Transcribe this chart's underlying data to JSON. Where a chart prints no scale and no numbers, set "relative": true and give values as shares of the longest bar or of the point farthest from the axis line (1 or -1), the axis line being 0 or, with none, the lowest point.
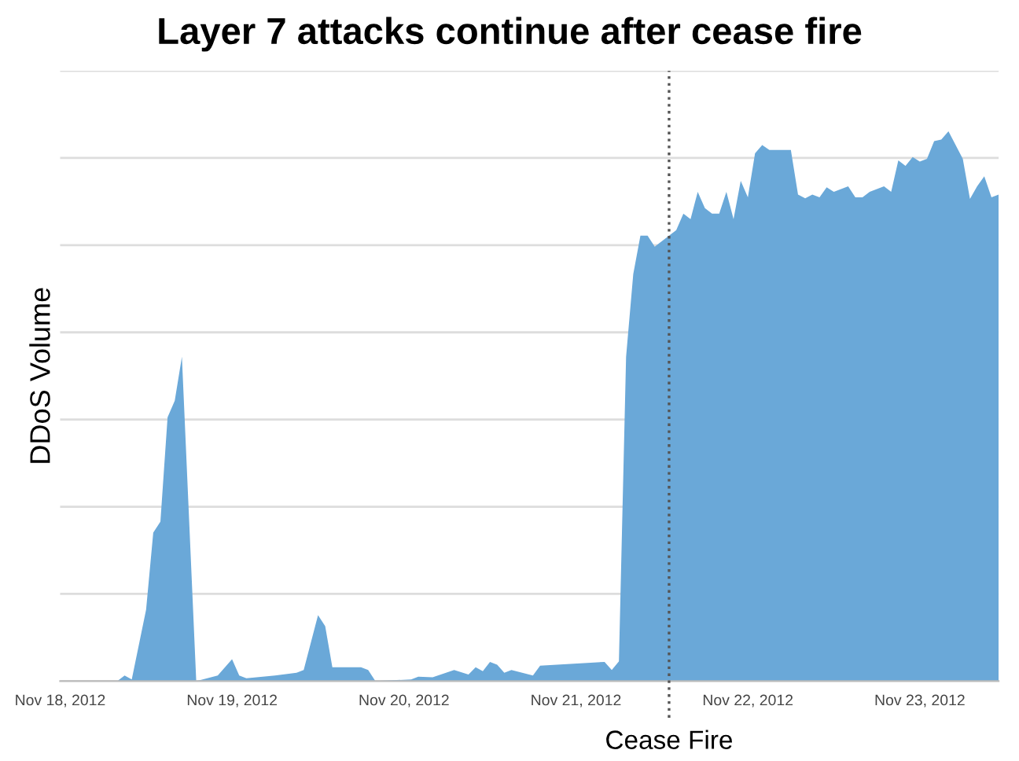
{
  "chart_data": {
    "type": "area",
    "title": "Layer 7 attacks continue after cease fire",
    "ylabel": "DDoS Volume",
    "relative": true,
    "grid": "y",
    "legend": false,
    "color": "#6aa8d8",
    "x": [
      "2012-11-18T00:00",
      "2012-11-18T08:00",
      "2012-11-18T09:00",
      "2012-11-18T10:00",
      "2012-11-18T12:00",
      "2012-11-18T13:00",
      "2012-11-18T14:00",
      "2012-11-18T15:00",
      "2012-11-18T16:00",
      "2012-11-18T17:00",
      "2012-11-18T19:00",
      "2012-11-18T22:00",
      "2012-11-19T00:00",
      "2012-11-19T01:00",
      "2012-11-19T02:00",
      "2012-11-19T06:00",
      "2012-11-19T09:00",
      "2012-11-19T10:00",
      "2012-11-19T12:00",
      "2012-11-19T13:00",
      "2012-11-19T14:00",
      "2012-11-19T18:00",
      "2012-11-19T19:00",
      "2012-11-19T20:00",
      "2012-11-20T01:00",
      "2012-11-20T02:00",
      "2012-11-20T04:00",
      "2012-11-20T07:00",
      "2012-11-20T09:00",
      "2012-11-20T10:00",
      "2012-11-20T11:00",
      "2012-11-20T12:00",
      "2012-11-20T13:00",
      "2012-11-20T14:00",
      "2012-11-20T15:00",
      "2012-11-20T18:00",
      "2012-11-20T19:00",
      "2012-11-21T04:00",
      "2012-11-21T05:00",
      "2012-11-21T06:00",
      "2012-11-21T07:00",
      "2012-11-21T08:00",
      "2012-11-21T09:00",
      "2012-11-21T10:00",
      "2012-11-21T11:00",
      "2012-11-21T12:00",
      "2012-11-21T14:00",
      "2012-11-21T15:00",
      "2012-11-21T16:00",
      "2012-11-21T17:00",
      "2012-11-21T18:00",
      "2012-11-21T19:00",
      "2012-11-21T20:00",
      "2012-11-21T21:00",
      "2012-11-21T22:00",
      "2012-11-21T23:00",
      "2012-11-22T00:00",
      "2012-11-22T01:00",
      "2012-11-22T02:00",
      "2012-11-22T03:00",
      "2012-11-22T06:00",
      "2012-11-22T07:00",
      "2012-11-22T08:00",
      "2012-11-22T09:00",
      "2012-11-22T10:00",
      "2012-11-22T11:00",
      "2012-11-22T12:00",
      "2012-11-22T14:00",
      "2012-11-22T15:00",
      "2012-11-22T16:00",
      "2012-11-22T17:00",
      "2012-11-22T19:00",
      "2012-11-22T20:00",
      "2012-11-22T21:00",
      "2012-11-22T22:00",
      "2012-11-22T23:00",
      "2012-11-23T00:00",
      "2012-11-23T01:00",
      "2012-11-23T02:00",
      "2012-11-23T03:00",
      "2012-11-23T04:00",
      "2012-11-23T06:00",
      "2012-11-23T07:00",
      "2012-11-23T08:00",
      "2012-11-23T09:00",
      "2012-11-23T10:00",
      "2012-11-23T11:00"
    ],
    "values": [
      0,
      0,
      0.01,
      0.003,
      0.13,
      0.27,
      0.29,
      0.48,
      0.51,
      0.59,
      0,
      0.01,
      0.04,
      0.01,
      0.005,
      0.01,
      0.015,
      0.02,
      0.12,
      0.1,
      0.025,
      0.025,
      0.02,
      0,
      0.003,
      0.008,
      0.007,
      0.02,
      0.012,
      0.025,
      0.018,
      0.035,
      0.03,
      0.015,
      0.02,
      0.01,
      0.028,
      0.035,
      0.02,
      0.036,
      0.59,
      0.74,
      0.81,
      0.81,
      0.79,
      0.8,
      0.82,
      0.85,
      0.84,
      0.89,
      0.86,
      0.85,
      0.85,
      0.89,
      0.84,
      0.91,
      0.88,
      0.96,
      0.975,
      0.966,
      0.966,
      0.885,
      0.878,
      0.885,
      0.88,
      0.898,
      0.89,
      0.9,
      0.88,
      0.88,
      0.89,
      0.9,
      0.89,
      0.947,
      0.937,
      0.953,
      0.945,
      0.95,
      0.982,
      0.985,
      1.0,
      0.95,
      0.877,
      0.9,
      0.918,
      0.88,
      0.885
    ],
    "xlim": [
      "2012-11-18T00:00",
      "2012-11-23T11:00"
    ],
    "xticks": [
      {
        "value": "2012-11-18",
        "label": "Nov 18, 2012"
      },
      {
        "value": "2012-11-19",
        "label": "Nov 19, 2012"
      },
      {
        "value": "2012-11-20",
        "label": "Nov 20, 2012"
      },
      {
        "value": "2012-11-21",
        "label": "Nov 21, 2012"
      },
      {
        "value": "2012-11-22",
        "label": "Nov 22, 2012"
      },
      {
        "value": "2012-11-23",
        "label": "Nov 23, 2012"
      }
    ],
    "ref_lines": [
      {
        "axis": "x",
        "value": "2012-11-21T13:00",
        "label": "Cease Fire",
        "color": "#555555",
        "line_style": "dotted"
      }
    ]
  }
}
